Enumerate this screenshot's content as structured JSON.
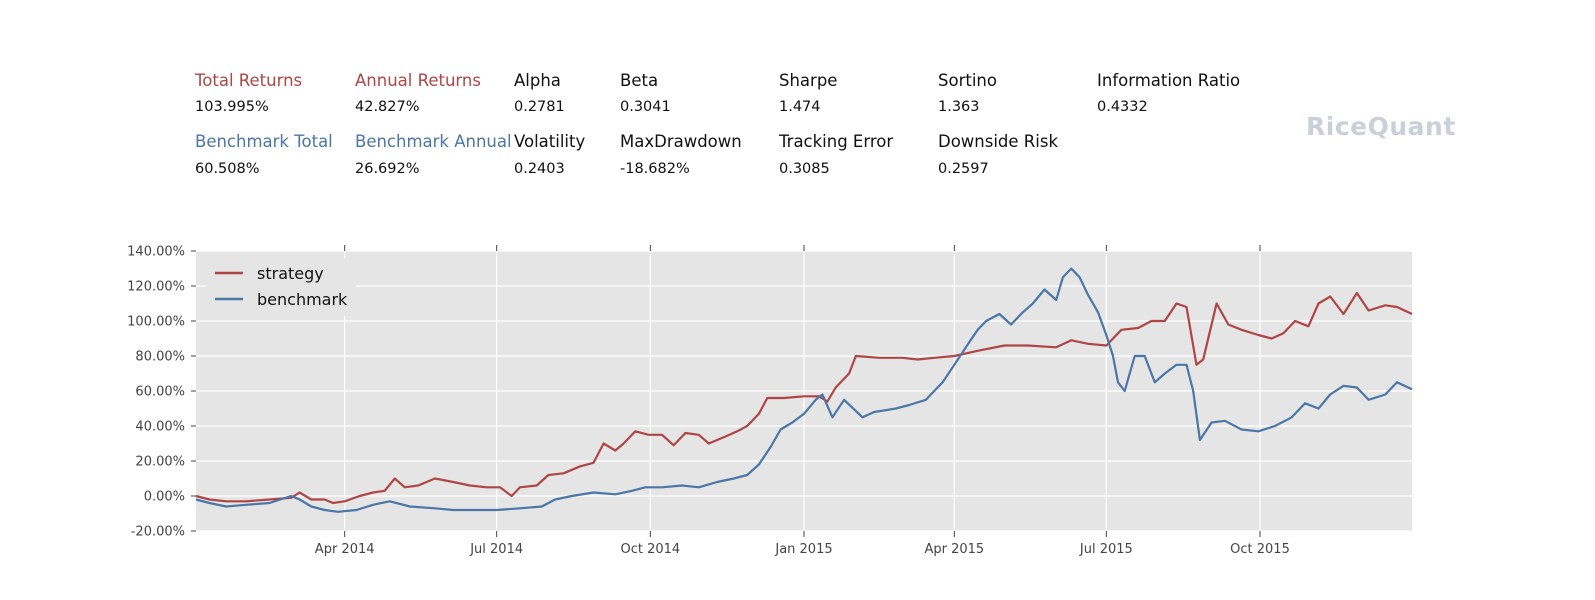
{
  "summary": {
    "row1": [
      {
        "label": "Total Returns",
        "value": "103.995%",
        "color": "#b04545"
      },
      {
        "label": "Annual Returns",
        "value": "42.827%",
        "color": "#b04545"
      },
      {
        "label": "Alpha",
        "value": "0.2781",
        "color": "#111111"
      },
      {
        "label": "Beta",
        "value": "0.3041",
        "color": "#111111"
      },
      {
        "label": "Sharpe",
        "value": "1.474",
        "color": "#111111"
      },
      {
        "label": "Sortino",
        "value": "1.363",
        "color": "#111111"
      },
      {
        "label": "Information Ratio",
        "value": "0.4332",
        "color": "#111111"
      }
    ],
    "row2": [
      {
        "label": "Benchmark Total",
        "value": "60.508%",
        "color": "#4a76a8"
      },
      {
        "label": "Benchmark Annual",
        "value": "26.692%",
        "color": "#4a76a8"
      },
      {
        "label": "Volatility",
        "value": "0.2403",
        "color": "#111111"
      },
      {
        "label": "MaxDrawdown",
        "value": "-18.682%",
        "color": "#111111"
      },
      {
        "label": "Tracking Error",
        "value": "0.3085",
        "color": "#111111"
      },
      {
        "label": "Downside Risk",
        "value": "0.2597",
        "color": "#111111"
      }
    ]
  },
  "logo": "RiceQuant",
  "chart_data": {
    "type": "line",
    "title": "",
    "xlabel": "",
    "ylabel": "",
    "x_range": [
      "2014-01-02",
      "2015-12-31"
    ],
    "ylim": [
      -20,
      140
    ],
    "yticks": [
      -20,
      0,
      20,
      40,
      60,
      80,
      100,
      120,
      140
    ],
    "ytick_labels": [
      "-20.00%",
      "0.00%",
      "20.00%",
      "40.00%",
      "60.00%",
      "80.00%",
      "100.00%",
      "120.00%",
      "140.00%"
    ],
    "xticks": [
      "2014-04-01",
      "2014-07-01",
      "2014-10-01",
      "2015-01-01",
      "2015-04-01",
      "2015-07-01",
      "2015-10-01"
    ],
    "xtick_labels": [
      "Apr 2014",
      "Jul 2014",
      "Oct 2014",
      "Jan 2015",
      "Apr 2015",
      "Jul 2015",
      "Oct 2015"
    ],
    "grid": true,
    "legend": "top-left",
    "background": "#e5e5e5",
    "series": [
      {
        "name": "strategy",
        "color": "#b04545",
        "points": [
          [
            "2014-01-02",
            0
          ],
          [
            "2014-01-10",
            -2
          ],
          [
            "2014-01-20",
            -3
          ],
          [
            "2014-02-01",
            -3
          ],
          [
            "2014-02-15",
            -2
          ],
          [
            "2014-02-28",
            -1
          ],
          [
            "2014-03-05",
            2
          ],
          [
            "2014-03-12",
            -2
          ],
          [
            "2014-03-20",
            -2
          ],
          [
            "2014-03-25",
            -4
          ],
          [
            "2014-04-01",
            -3
          ],
          [
            "2014-04-10",
            0
          ],
          [
            "2014-04-18",
            2
          ],
          [
            "2014-04-25",
            3
          ],
          [
            "2014-05-01",
            10
          ],
          [
            "2014-05-07",
            5
          ],
          [
            "2014-05-15",
            6
          ],
          [
            "2014-05-25",
            10
          ],
          [
            "2014-06-05",
            8
          ],
          [
            "2014-06-15",
            6
          ],
          [
            "2014-06-25",
            5
          ],
          [
            "2014-07-03",
            5
          ],
          [
            "2014-07-10",
            0
          ],
          [
            "2014-07-15",
            5
          ],
          [
            "2014-07-25",
            6
          ],
          [
            "2014-08-01",
            12
          ],
          [
            "2014-08-10",
            13
          ],
          [
            "2014-08-20",
            17
          ],
          [
            "2014-08-28",
            19
          ],
          [
            "2014-09-03",
            30
          ],
          [
            "2014-09-10",
            26
          ],
          [
            "2014-09-15",
            30
          ],
          [
            "2014-09-22",
            37
          ],
          [
            "2014-09-30",
            35
          ],
          [
            "2014-10-08",
            35
          ],
          [
            "2014-10-15",
            29
          ],
          [
            "2014-10-22",
            36
          ],
          [
            "2014-10-30",
            35
          ],
          [
            "2014-11-05",
            30
          ],
          [
            "2014-11-15",
            34
          ],
          [
            "2014-11-22",
            37
          ],
          [
            "2014-11-28",
            40
          ],
          [
            "2014-12-05",
            47
          ],
          [
            "2014-12-10",
            56
          ],
          [
            "2014-12-20",
            56
          ],
          [
            "2015-01-01",
            57
          ],
          [
            "2015-01-10",
            57
          ],
          [
            "2015-01-15",
            54
          ],
          [
            "2015-01-20",
            62
          ],
          [
            "2015-01-28",
            70
          ],
          [
            "2015-02-01",
            80
          ],
          [
            "2015-02-15",
            79
          ],
          [
            "2015-03-01",
            79
          ],
          [
            "2015-03-10",
            78
          ],
          [
            "2015-03-20",
            79
          ],
          [
            "2015-04-01",
            80
          ],
          [
            "2015-04-15",
            83
          ],
          [
            "2015-05-01",
            86
          ],
          [
            "2015-05-15",
            86
          ],
          [
            "2015-06-01",
            85
          ],
          [
            "2015-06-10",
            89
          ],
          [
            "2015-06-20",
            87
          ],
          [
            "2015-07-01",
            86
          ],
          [
            "2015-07-10",
            95
          ],
          [
            "2015-07-20",
            96
          ],
          [
            "2015-07-28",
            100
          ],
          [
            "2015-08-05",
            100
          ],
          [
            "2015-08-12",
            110
          ],
          [
            "2015-08-18",
            108
          ],
          [
            "2015-08-24",
            75
          ],
          [
            "2015-08-28",
            78
          ],
          [
            "2015-09-05",
            110
          ],
          [
            "2015-09-12",
            98
          ],
          [
            "2015-09-20",
            95
          ],
          [
            "2015-09-30",
            92
          ],
          [
            "2015-10-08",
            90
          ],
          [
            "2015-10-15",
            93
          ],
          [
            "2015-10-22",
            100
          ],
          [
            "2015-10-30",
            97
          ],
          [
            "2015-11-05",
            110
          ],
          [
            "2015-11-12",
            114
          ],
          [
            "2015-11-20",
            104
          ],
          [
            "2015-11-28",
            116
          ],
          [
            "2015-12-05",
            106
          ],
          [
            "2015-12-15",
            109
          ],
          [
            "2015-12-22",
            108
          ],
          [
            "2015-12-31",
            104
          ]
        ]
      },
      {
        "name": "benchmark",
        "color": "#4a76a8",
        "points": [
          [
            "2014-01-02",
            -2
          ],
          [
            "2014-01-10",
            -4
          ],
          [
            "2014-01-20",
            -6
          ],
          [
            "2014-02-01",
            -5
          ],
          [
            "2014-02-15",
            -4
          ],
          [
            "2014-02-28",
            0
          ],
          [
            "2014-03-05",
            -2
          ],
          [
            "2014-03-12",
            -6
          ],
          [
            "2014-03-20",
            -8
          ],
          [
            "2014-03-28",
            -9
          ],
          [
            "2014-04-08",
            -8
          ],
          [
            "2014-04-18",
            -5
          ],
          [
            "2014-04-28",
            -3
          ],
          [
            "2014-05-10",
            -6
          ],
          [
            "2014-05-25",
            -7
          ],
          [
            "2014-06-05",
            -8
          ],
          [
            "2014-06-20",
            -8
          ],
          [
            "2014-07-01",
            -8
          ],
          [
            "2014-07-15",
            -7
          ],
          [
            "2014-07-28",
            -6
          ],
          [
            "2014-08-05",
            -2
          ],
          [
            "2014-08-15",
            0
          ],
          [
            "2014-08-28",
            2
          ],
          [
            "2014-09-10",
            1
          ],
          [
            "2014-09-20",
            3
          ],
          [
            "2014-09-28",
            5
          ],
          [
            "2014-10-08",
            5
          ],
          [
            "2014-10-20",
            6
          ],
          [
            "2014-10-30",
            5
          ],
          [
            "2014-11-10",
            8
          ],
          [
            "2014-11-20",
            10
          ],
          [
            "2014-11-28",
            12
          ],
          [
            "2014-12-05",
            18
          ],
          [
            "2014-12-12",
            28
          ],
          [
            "2014-12-18",
            38
          ],
          [
            "2014-12-25",
            42
          ],
          [
            "2015-01-01",
            47
          ],
          [
            "2015-01-08",
            55
          ],
          [
            "2015-01-12",
            58
          ],
          [
            "2015-01-18",
            45
          ],
          [
            "2015-01-25",
            55
          ],
          [
            "2015-02-05",
            45
          ],
          [
            "2015-02-12",
            48
          ],
          [
            "2015-02-25",
            50
          ],
          [
            "2015-03-05",
            52
          ],
          [
            "2015-03-15",
            55
          ],
          [
            "2015-03-25",
            65
          ],
          [
            "2015-04-01",
            75
          ],
          [
            "2015-04-10",
            88
          ],
          [
            "2015-04-15",
            95
          ],
          [
            "2015-04-20",
            100
          ],
          [
            "2015-04-28",
            104
          ],
          [
            "2015-05-05",
            98
          ],
          [
            "2015-05-12",
            105
          ],
          [
            "2015-05-18",
            110
          ],
          [
            "2015-05-25",
            118
          ],
          [
            "2015-06-01",
            112
          ],
          [
            "2015-06-05",
            125
          ],
          [
            "2015-06-10",
            130
          ],
          [
            "2015-06-15",
            125
          ],
          [
            "2015-06-20",
            115
          ],
          [
            "2015-06-26",
            105
          ],
          [
            "2015-07-01",
            92
          ],
          [
            "2015-07-05",
            80
          ],
          [
            "2015-07-08",
            65
          ],
          [
            "2015-07-12",
            60
          ],
          [
            "2015-07-18",
            80
          ],
          [
            "2015-07-24",
            80
          ],
          [
            "2015-07-30",
            65
          ],
          [
            "2015-08-05",
            70
          ],
          [
            "2015-08-12",
            75
          ],
          [
            "2015-08-18",
            75
          ],
          [
            "2015-08-22",
            60
          ],
          [
            "2015-08-26",
            32
          ],
          [
            "2015-09-02",
            42
          ],
          [
            "2015-09-10",
            43
          ],
          [
            "2015-09-20",
            38
          ],
          [
            "2015-09-30",
            37
          ],
          [
            "2015-10-10",
            40
          ],
          [
            "2015-10-20",
            45
          ],
          [
            "2015-10-28",
            53
          ],
          [
            "2015-11-05",
            50
          ],
          [
            "2015-11-12",
            58
          ],
          [
            "2015-11-20",
            63
          ],
          [
            "2015-11-28",
            62
          ],
          [
            "2015-12-05",
            55
          ],
          [
            "2015-12-15",
            58
          ],
          [
            "2015-12-22",
            65
          ],
          [
            "2015-12-31",
            61
          ]
        ]
      }
    ]
  }
}
